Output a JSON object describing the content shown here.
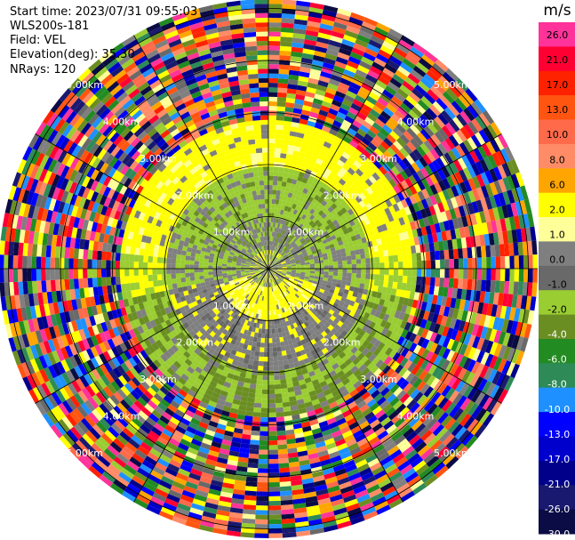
{
  "header": {
    "start_time": "Start time: 2023/07/31 09:55:03",
    "instrument": "WLS200s-181",
    "field": "Field: VEL",
    "elevation": "Elevation(deg): 35.30",
    "nrays": "NRays: 120"
  },
  "colorbar": {
    "unit": "m/s",
    "ticks": [
      "26.0",
      "21.0",
      "17.0",
      "13.0",
      "10.0",
      "8.0",
      "6.0",
      "2.0",
      "1.0",
      "0.0",
      "-1.0",
      "-2.0",
      "-4.0",
      "-6.0",
      "-8.0",
      "-10.0",
      "-13.0",
      "-17.0",
      "-21.0",
      "-26.0",
      "-30.0"
    ],
    "colors": [
      "#ff3399",
      "#ff0033",
      "#ff2200",
      "#ff5511",
      "#ff6a4a",
      "#ff8c66",
      "#ffa500",
      "#ffff00",
      "#ffff99",
      "#7f7f7f",
      "#696969",
      "#9acd32",
      "#6b8e23",
      "#228b22",
      "#2e8b57",
      "#1e90ff",
      "#0000ff",
      "#0000cd",
      "#00008b",
      "#191970",
      "#0b0b45"
    ]
  },
  "chart_data": {
    "type": "ppi",
    "field": "VEL",
    "units": "m/s",
    "nrays": 120,
    "elevation_deg": 35.3,
    "range_rings_km": [
      1.0,
      2.0,
      3.0,
      4.0,
      5.0
    ],
    "ring_labels": [
      "1.00km",
      "2.00km",
      "3.00km",
      "4.00km",
      "5.00km"
    ],
    "spoke_azimuths_deg": [
      0,
      30,
      60,
      90,
      120,
      150,
      180,
      210,
      240,
      270,
      300,
      330
    ],
    "color_scale": {
      "min": -30.0,
      "max": 26.0,
      "ticks": [
        26.0,
        21.0,
        17.0,
        13.0,
        10.0,
        8.0,
        6.0,
        2.0,
        1.0,
        0.0,
        -1.0,
        -2.0,
        -4.0,
        -6.0,
        -8.0,
        -10.0,
        -13.0,
        -17.0,
        -21.0,
        -26.0,
        -30.0
      ]
    },
    "approximate_structure": [
      {
        "range_km": [
          0.0,
          1.0
        ],
        "dominant": "mixed gray/green north, yellow south"
      },
      {
        "range_km": [
          1.0,
          2.0
        ],
        "dominant": "green/gray north, gray/yellow south"
      },
      {
        "range_km": [
          2.0,
          2.9
        ],
        "dominant": "yellow north, green south"
      },
      {
        "range_km": [
          2.9,
          5.2
        ],
        "dominant": "noise, multicolor"
      }
    ]
  }
}
